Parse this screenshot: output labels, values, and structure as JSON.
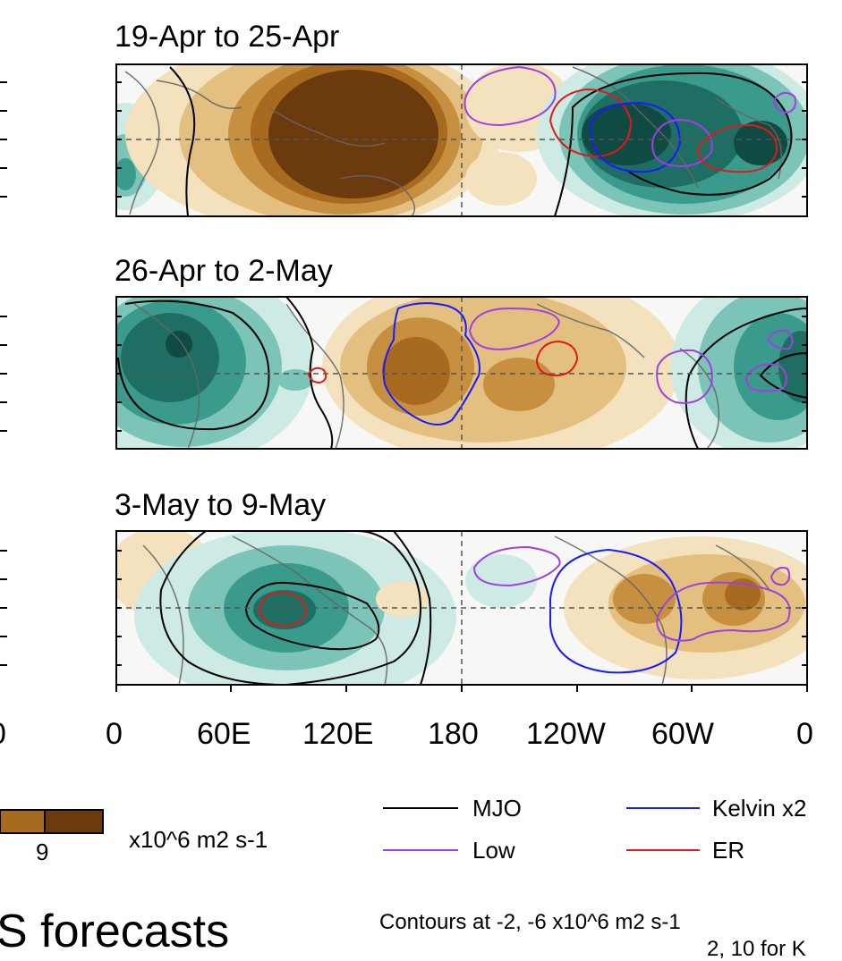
{
  "panels": [
    {
      "title": "19-Apr to 25-Apr"
    },
    {
      "title": "26-Apr to 2-May"
    },
    {
      "title": "3-May to 9-May"
    }
  ],
  "longitude_axis": {
    "left_edge_partial": "0",
    "ticks": [
      "0",
      "60E",
      "120E",
      "180",
      "120W",
      "60W",
      "0"
    ]
  },
  "colorbar": {
    "tick_label": "9",
    "units": "x10^6 m2 s-1",
    "colors": [
      "#a86a1e",
      "#6b3a0d"
    ]
  },
  "line_legend": [
    {
      "label": "MJO",
      "color": "#000000"
    },
    {
      "label": "Kelvin x2",
      "color": "#1a1aff"
    },
    {
      "label": "Low",
      "color": "#a040e0"
    },
    {
      "label": "ER",
      "color": "#e01818"
    }
  ],
  "footer": {
    "big_text": "S forecasts",
    "contours_note": "Contours at -2, -6 x10^6 m2 s-1",
    "partial_note": "2, 10 for K"
  }
}
